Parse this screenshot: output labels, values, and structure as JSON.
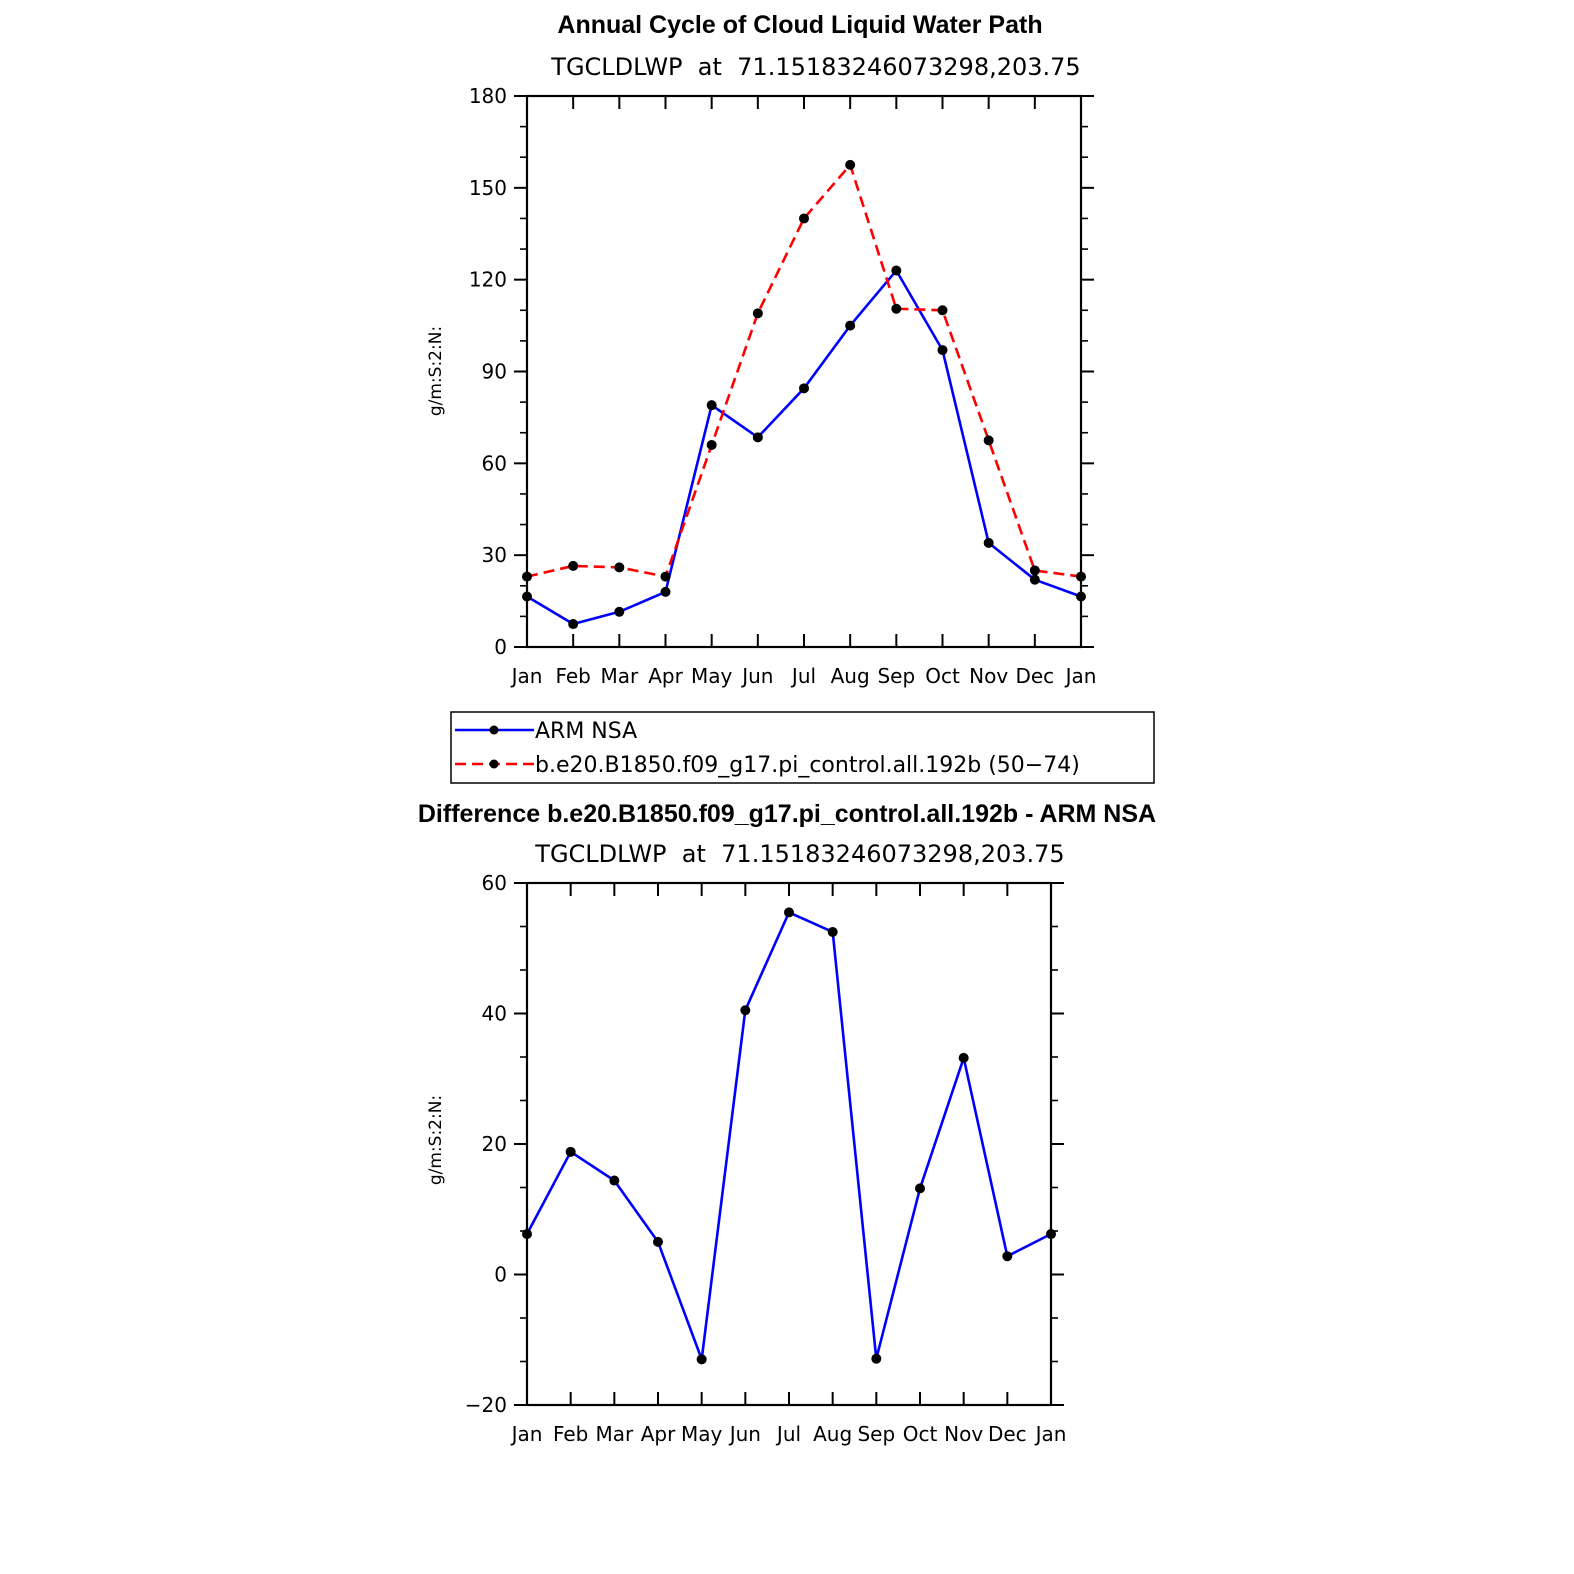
{
  "chart_data": [
    {
      "type": "line",
      "title": "Annual Cycle of Cloud Liquid Water Path",
      "subtitle": "TGCLDLWP  at  71.15183246073298,203.75",
      "ylabel": "g/m:S:2:N:",
      "categories": [
        "Jan",
        "Feb",
        "Mar",
        "Apr",
        "May",
        "Jun",
        "Jul",
        "Aug",
        "Sep",
        "Oct",
        "Nov",
        "Dec",
        "Jan"
      ],
      "ylim": [
        0,
        180
      ],
      "yticks": [
        0,
        30,
        60,
        90,
        120,
        150,
        180
      ],
      "ytick_labels": [
        "0",
        "30",
        "60",
        "90",
        "120",
        "150",
        "180"
      ],
      "series": [
        {
          "name": "ARM NSA",
          "color": "#0000ff",
          "dash": "solid",
          "values": [
            16.5,
            7.5,
            11.5,
            18,
            79,
            68.5,
            84.5,
            105,
            123,
            97,
            34,
            22,
            16.5
          ]
        },
        {
          "name": "b.e20.B1850.f09_g17.pi_control.all.192b (50−74)",
          "color": "#ff0000",
          "dash": "dashed",
          "values": [
            23,
            26.5,
            26,
            23,
            66,
            109,
            140,
            157.5,
            110.5,
            110,
            67.5,
            25,
            23
          ]
        }
      ],
      "legend": "below"
    },
    {
      "type": "line",
      "title": "Difference b.e20.B1850.f09_g17.pi_control.all.192b - ARM NSA",
      "subtitle": "TGCLDLWP  at  71.15183246073298,203.75",
      "ylabel": "g/m:S:2:N:",
      "categories": [
        "Jan",
        "Feb",
        "Mar",
        "Apr",
        "May",
        "Jun",
        "Jul",
        "Aug",
        "Sep",
        "Oct",
        "Nov",
        "Dec",
        "Jan"
      ],
      "ylim": [
        -20,
        60
      ],
      "yticks": [
        -20,
        0,
        20,
        40,
        60
      ],
      "ytick_labels": [
        "−20",
        "0",
        "20",
        "40",
        "60"
      ],
      "series": [
        {
          "color": "#0000ff",
          "dash": "solid",
          "values": [
            6.2,
            18.8,
            14.4,
            5,
            -13,
            40.5,
            55.5,
            52.5,
            -12.9,
            13.2,
            33.2,
            2.8,
            6.2
          ]
        }
      ]
    }
  ]
}
